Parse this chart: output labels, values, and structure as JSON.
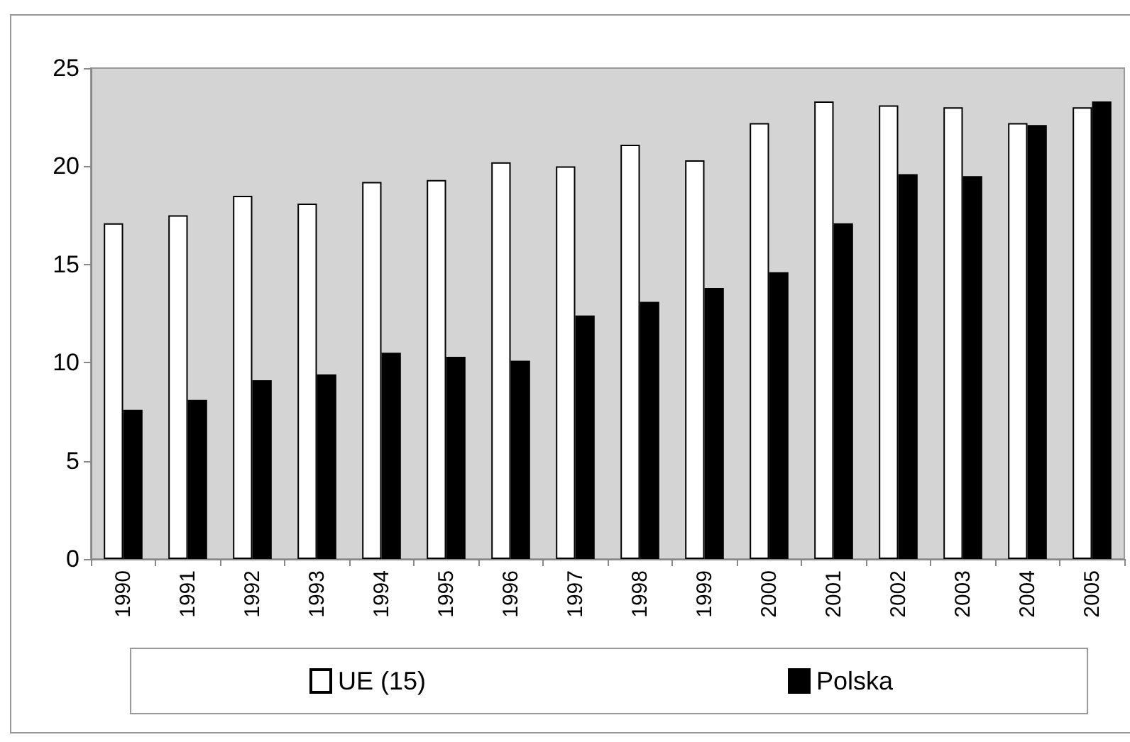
{
  "chart_data": {
    "type": "bar",
    "categories": [
      "1990",
      "1991",
      "1992",
      "1993",
      "1994",
      "1995",
      "1996",
      "1997",
      "1998",
      "1999",
      "2000",
      "2001",
      "2002",
      "2003",
      "2004",
      "2005"
    ],
    "series": [
      {
        "name": "UE (15)",
        "color": "#ffffff",
        "values": [
          17.1,
          17.5,
          18.5,
          18.1,
          19.2,
          19.3,
          20.2,
          20.0,
          21.1,
          20.3,
          22.2,
          23.3,
          23.1,
          23.0,
          22.2,
          23.0
        ]
      },
      {
        "name": "Polska",
        "color": "#000000",
        "values": [
          7.6,
          8.1,
          9.1,
          9.4,
          10.5,
          10.3,
          10.1,
          12.4,
          13.1,
          13.8,
          14.6,
          17.1,
          19.6,
          19.5,
          22.1,
          23.3
        ]
      }
    ],
    "ylim": [
      0,
      25
    ],
    "yticks": [
      0,
      5,
      10,
      15,
      20,
      25
    ],
    "grid": false,
    "legend": "bottom"
  }
}
